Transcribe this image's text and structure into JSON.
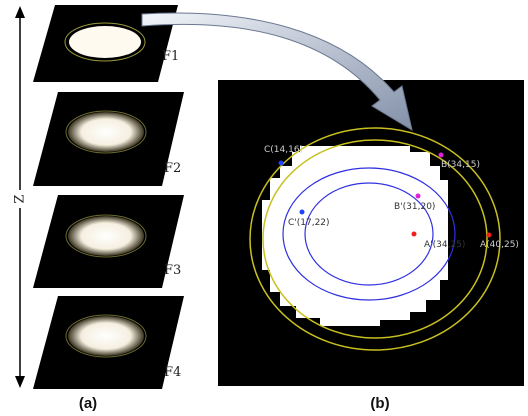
{
  "axis_label": "Z",
  "frames": [
    {
      "label": "F1"
    },
    {
      "label": "F2"
    },
    {
      "label": "F3"
    },
    {
      "label": "F4"
    }
  ],
  "points": [
    {
      "label": "C(14,16)"
    },
    {
      "label": "B(34,15)"
    },
    {
      "label": "B'(31,20)"
    },
    {
      "label": "C'(17,22)"
    },
    {
      "label": "A'(34,25)"
    },
    {
      "label": "A(40,25)"
    }
  ],
  "panel_labels": [
    "(a)",
    "(b)"
  ]
}
